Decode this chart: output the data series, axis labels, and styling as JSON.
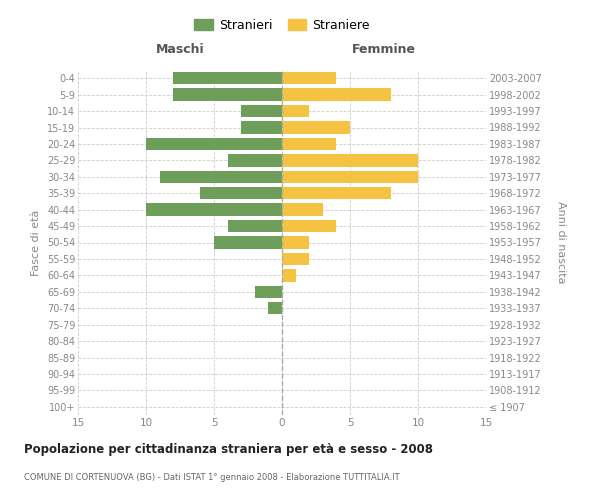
{
  "age_groups": [
    "100+",
    "95-99",
    "90-94",
    "85-89",
    "80-84",
    "75-79",
    "70-74",
    "65-69",
    "60-64",
    "55-59",
    "50-54",
    "45-49",
    "40-44",
    "35-39",
    "30-34",
    "25-29",
    "20-24",
    "15-19",
    "10-14",
    "5-9",
    "0-4"
  ],
  "birth_years": [
    "≤ 1907",
    "1908-1912",
    "1913-1917",
    "1918-1922",
    "1923-1927",
    "1928-1932",
    "1933-1937",
    "1938-1942",
    "1943-1947",
    "1948-1952",
    "1953-1957",
    "1958-1962",
    "1963-1967",
    "1968-1972",
    "1973-1977",
    "1978-1982",
    "1983-1987",
    "1988-1992",
    "1993-1997",
    "1998-2002",
    "2003-2007"
  ],
  "males": [
    0,
    0,
    0,
    0,
    0,
    0,
    1,
    2,
    0,
    0,
    5,
    4,
    10,
    6,
    9,
    4,
    10,
    3,
    3,
    8,
    8
  ],
  "females": [
    0,
    0,
    0,
    0,
    0,
    0,
    0,
    0,
    1,
    2,
    2,
    4,
    3,
    8,
    10,
    10,
    4,
    5,
    2,
    8,
    4
  ],
  "male_color": "#6d9e5a",
  "female_color": "#f5c242",
  "grid_color": "#cccccc",
  "title": "Popolazione per cittadinanza straniera per età e sesso - 2008",
  "subtitle": "COMUNE DI CORTENUOVA (BG) - Dati ISTAT 1° gennaio 2008 - Elaborazione TUTTITALIA.IT",
  "xlabel_left": "Maschi",
  "xlabel_right": "Femmine",
  "ylabel_left": "Fasce di età",
  "ylabel_right": "Anni di nascita",
  "legend_males": "Stranieri",
  "legend_females": "Straniere",
  "xlim": 15,
  "bar_height": 0.75
}
